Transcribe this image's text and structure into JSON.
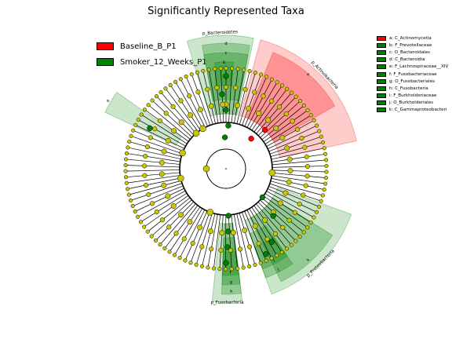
{
  "title": "Significantly Represented Taxa",
  "colors": {
    "baseline": "#ff0000",
    "smoker": "#008000",
    "node_default": "#c8c800",
    "node_baseline": "#ff0000",
    "node_smoker": "#008000"
  },
  "legend": [
    {
      "label": "Baseline_B_P1",
      "color": "#ff0000"
    },
    {
      "label": "Smoker_12_Weeks_P1",
      "color": "#008000"
    }
  ],
  "key": [
    {
      "text": "a: C_Actinomycetia",
      "color": "#ff0000"
    },
    {
      "text": "b: F_Prevotellaceae",
      "color": "#008000"
    },
    {
      "text": "c: O_Bacteroidales",
      "color": "#008000"
    },
    {
      "text": "d: C_Bacteroidia",
      "color": "#008000"
    },
    {
      "text": "e: F_Lachnospiraceae__XIV",
      "color": "#008000"
    },
    {
      "text": "f: F_Fusobacteriaceae",
      "color": "#008000"
    },
    {
      "text": "g: O_Fusobacteriales",
      "color": "#008000"
    },
    {
      "text": "h: C_Fusobacteria",
      "color": "#008000"
    },
    {
      "text": "i: F_Burkholderiaceae",
      "color": "#008000"
    },
    {
      "text": "j: O_Burkholderiales",
      "color": "#008000"
    },
    {
      "text": "k: C_Gammaproteobacteri",
      "color": "#008000"
    }
  ],
  "phyla": [
    {
      "label": "p_Bacteroidetes",
      "group": "smoker",
      "start": -17,
      "end": 12,
      "sub": [
        {
          "letter": "d",
          "start": -11,
          "end": 11
        },
        {
          "letter": "c",
          "start": -11,
          "end": 11
        },
        {
          "letter": "b",
          "start": -6,
          "end": 4
        }
      ]
    },
    {
      "label": "p_Actinobacteria",
      "group": "baseline",
      "start": 15,
      "end": 78,
      "sub": [
        {
          "letter": "a",
          "start": 22,
          "end": 60
        }
      ]
    },
    {
      "label": "p_Proteobacteria",
      "group": "smoker",
      "start": 110,
      "end": 160,
      "sub": [
        {
          "letter": "k",
          "start": 122,
          "end": 154
        },
        {
          "letter": "j",
          "start": 145,
          "end": 160
        },
        {
          "letter": "i",
          "start": 145,
          "end": 160
        }
      ]
    },
    {
      "label": "p_Fusobacteria",
      "group": "smoker",
      "start": 173,
      "end": 186,
      "sub": [
        {
          "letter": "h",
          "start": 173,
          "end": 182
        },
        {
          "letter": "g",
          "start": 173,
          "end": 182
        },
        {
          "letter": "f",
          "start": 173,
          "end": 182
        }
      ]
    },
    {
      "label": "e",
      "group": "smoker",
      "start": 295,
      "end": 305,
      "sub": []
    }
  ]
}
